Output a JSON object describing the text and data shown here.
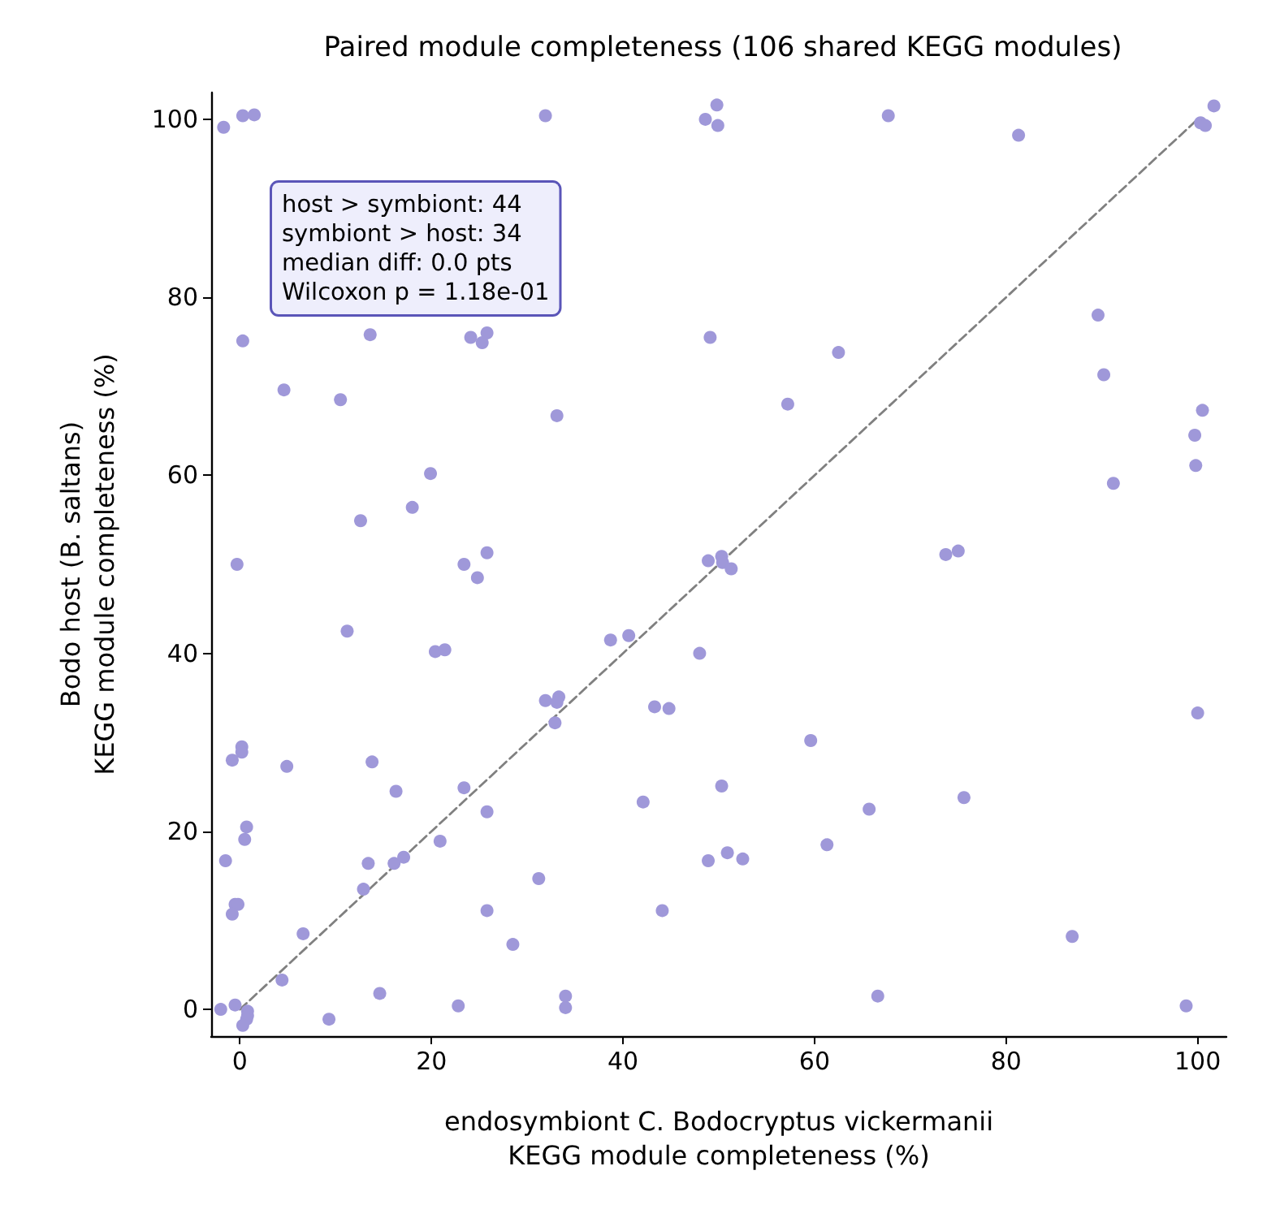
{
  "chart_data": {
    "type": "scatter",
    "title": "Paired module completeness (106 shared KEGG modules)",
    "xlabel": "endosymbiont C. Bodocryptus vickermanii\nKEGG module completeness (%)",
    "ylabel": "Bodo host (B. saltans)\nKEGG module completeness (%)",
    "annotations": [
      "host > symbiont: 44",
      "symbiont > host: 34",
      "median diff: 0.0 pts",
      "Wilcoxon p = 1.18e-01"
    ],
    "xlim": [
      -3,
      103
    ],
    "ylim": [
      -3,
      103
    ],
    "xticks": [
      0,
      20,
      40,
      60,
      80,
      100
    ],
    "yticks": [
      0,
      20,
      40,
      60,
      80,
      100
    ],
    "grid": false,
    "series": [
      {
        "type": "line",
        "color": "#808080",
        "line_style": "dashed",
        "marker": "none",
        "x": [
          0,
          100
        ],
        "values": [
          0,
          100
        ]
      },
      {
        "color": "#9f98d9",
        "marker": "circle",
        "x": [
          -1.7,
          0.3,
          1.5,
          31.9,
          48.6,
          49.8,
          49.9,
          67.7,
          81.3,
          100.3,
          100.8,
          101.7,
          0.3,
          13.6,
          24.1,
          25.3,
          25.8,
          49.1,
          4.6,
          10.5,
          33.1,
          62.5,
          57.2,
          89.6,
          90.2,
          100.5,
          99.7,
          99.8,
          91.2,
          19.9,
          12.6,
          18.0,
          -0.3,
          23.4,
          25.8,
          24.8,
          48.9,
          50.3,
          50.4,
          51.3,
          73.7,
          75.0,
          11.2,
          20.4,
          21.4,
          38.7,
          40.6,
          48.0,
          31.9,
          33.3,
          33.1,
          32.9,
          43.3,
          44.8,
          59.6,
          100.0,
          0.2,
          0.2,
          -0.8,
          4.9,
          13.8,
          16.3,
          23.4,
          25.8,
          42.1,
          50.3,
          65.7,
          75.6,
          0.7,
          0.5,
          -1.5,
          13.4,
          16.1,
          17.1,
          20.9,
          48.9,
          50.9,
          52.5,
          61.3,
          12.9,
          31.2,
          -0.5,
          -0.2,
          -0.8,
          25.8,
          44.1,
          6.6,
          28.5,
          86.9,
          4.4,
          14.6,
          34.0,
          66.6,
          22.8,
          34.0,
          98.8,
          -2.0,
          -0.5,
          0.8,
          0.8,
          0.7,
          0.3,
          9.3
        ],
        "values": [
          99.1,
          100.4,
          100.5,
          100.4,
          100.0,
          101.6,
          99.3,
          100.4,
          98.2,
          99.6,
          99.3,
          101.5,
          75.1,
          75.8,
          75.5,
          74.9,
          76.0,
          75.5,
          69.6,
          68.5,
          66.7,
          73.8,
          68.0,
          78.0,
          71.3,
          67.3,
          64.5,
          61.1,
          59.1,
          60.2,
          54.9,
          56.4,
          50.0,
          50.0,
          51.3,
          48.5,
          50.4,
          50.9,
          50.2,
          49.5,
          51.1,
          51.5,
          42.5,
          40.2,
          40.4,
          41.5,
          42.0,
          40.0,
          34.7,
          35.1,
          34.5,
          32.2,
          34.0,
          33.8,
          30.2,
          33.3,
          29.5,
          28.9,
          28.0,
          27.3,
          27.8,
          24.5,
          24.9,
          22.2,
          23.3,
          25.1,
          22.5,
          23.8,
          20.5,
          19.1,
          16.7,
          16.4,
          16.4,
          17.1,
          18.9,
          16.7,
          17.6,
          16.9,
          18.5,
          13.5,
          14.7,
          11.8,
          11.8,
          10.7,
          11.1,
          11.1,
          8.5,
          7.3,
          8.2,
          3.3,
          1.8,
          1.5,
          1.5,
          0.4,
          0.2,
          0.4,
          0.0,
          0.5,
          -0.2,
          -0.7,
          -1.1,
          -1.8,
          -1.1
        ]
      }
    ]
  }
}
